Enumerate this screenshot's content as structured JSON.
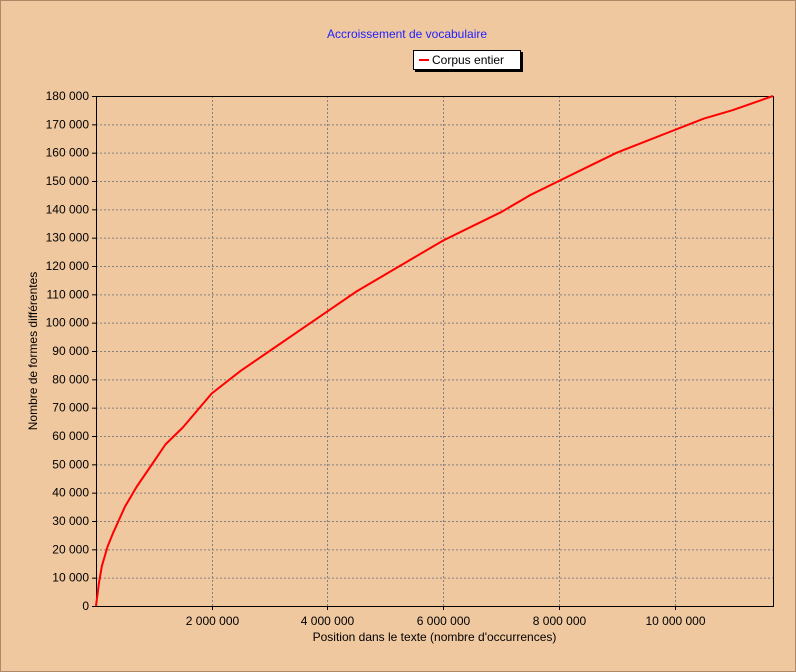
{
  "chart_data": {
    "type": "line",
    "title": "Accroissement de vocabulaire",
    "xlabel": "Position dans le texte (nombre d'occurrences)",
    "ylabel": "Nombre de formes différentes",
    "xlim": [
      0,
      11700000
    ],
    "ylim": [
      0,
      180000
    ],
    "x_ticks": [
      2000000,
      4000000,
      6000000,
      8000000,
      10000000
    ],
    "x_tick_labels": [
      "2 000 000",
      "4 000 000",
      "6 000 000",
      "8 000 000",
      "10 000 000"
    ],
    "y_ticks": [
      0,
      10000,
      20000,
      30000,
      40000,
      50000,
      60000,
      70000,
      80000,
      90000,
      100000,
      110000,
      120000,
      130000,
      140000,
      150000,
      160000,
      170000,
      180000
    ],
    "y_tick_labels": [
      "0",
      "10 000",
      "20 000",
      "30 000",
      "40 000",
      "50 000",
      "60 000",
      "70 000",
      "80 000",
      "90 000",
      "100 000",
      "110 000",
      "120 000",
      "130 000",
      "140 000",
      "150 000",
      "160 000",
      "170 000",
      "180 000"
    ],
    "grid": true,
    "legend_position": "top-center",
    "series": [
      {
        "name": "Corpus entier",
        "color": "#ff0000",
        "x": [
          0,
          50000,
          100000,
          200000,
          300000,
          500000,
          700000,
          1000000,
          1200000,
          1500000,
          2000000,
          2500000,
          3000000,
          3500000,
          4000000,
          4500000,
          5000000,
          5500000,
          6000000,
          6500000,
          7000000,
          7500000,
          8000000,
          8500000,
          9000000,
          9500000,
          10000000,
          10500000,
          11000000,
          11700000
        ],
        "y": [
          0,
          8000,
          14000,
          21000,
          26000,
          35000,
          42000,
          51000,
          57000,
          63000,
          75000,
          83000,
          90000,
          97000,
          104000,
          111000,
          117000,
          123000,
          129000,
          134000,
          139000,
          145000,
          150000,
          155000,
          160000,
          164000,
          168000,
          172000,
          175000,
          180000
        ]
      }
    ]
  }
}
